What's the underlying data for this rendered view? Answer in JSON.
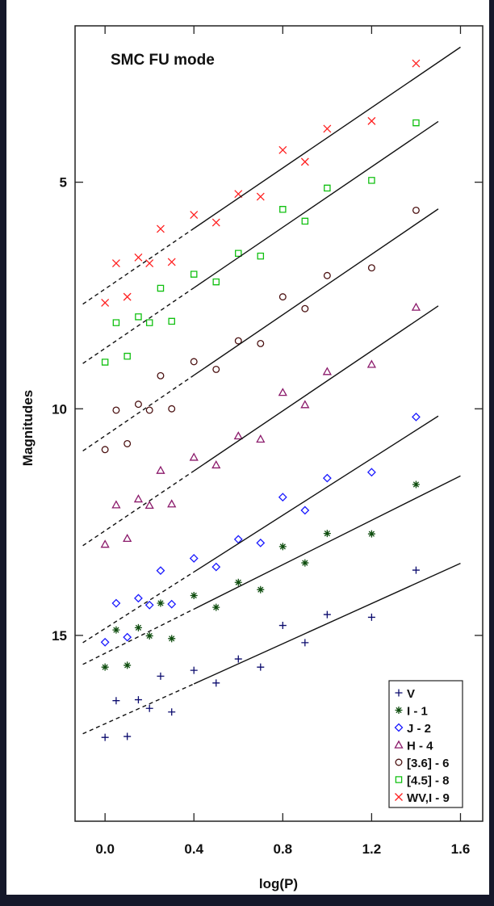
{
  "chart_data": {
    "type": "scatter",
    "title": "SMC FU mode",
    "xlabel": "log(P)",
    "ylabel": "Magnitudes",
    "xlim": [
      -0.135,
      1.7
    ],
    "ylim": [
      19.1,
      1.55
    ],
    "y_inverted": true,
    "xticks": [
      {
        "value": 0,
        "label": "0.0"
      },
      0.4,
      0.8,
      1.2,
      1.6
    ],
    "yticks": [
      5,
      10,
      15
    ],
    "legend": "lower right",
    "series": [
      {
        "name": "V",
        "color": "#0b0b6e",
        "marker": "plus",
        "x": [
          0.0,
          0.05,
          0.1,
          0.15,
          0.2,
          0.25,
          0.3,
          0.4,
          0.5,
          0.6,
          0.7,
          0.8,
          0.9,
          1.0,
          1.2,
          1.4
        ],
        "values": [
          17.25,
          16.44,
          17.23,
          16.42,
          16.61,
          15.9,
          16.69,
          15.77,
          16.05,
          15.52,
          15.7,
          14.78,
          15.16,
          14.54,
          14.6,
          13.56
        ],
        "fit": {
          "x": [
            -0.1,
            0.4,
            1.6
          ],
          "y": [
            17.17,
            16.07,
            13.41
          ]
        }
      },
      {
        "name": "I - 1",
        "color": "#0e4d0e",
        "marker": "asterisk",
        "x": [
          0.0,
          0.05,
          0.1,
          0.15,
          0.2,
          0.25,
          0.3,
          0.4,
          0.5,
          0.6,
          0.7,
          0.8,
          0.9,
          1.0,
          1.2,
          1.4
        ],
        "values": [
          15.7,
          14.88,
          15.66,
          14.83,
          15.01,
          14.29,
          15.07,
          14.12,
          14.38,
          13.83,
          13.99,
          13.04,
          13.4,
          12.75,
          12.76,
          11.67
        ],
        "fit": {
          "x": [
            -0.1,
            0.4,
            1.6
          ],
          "y": [
            15.64,
            14.42,
            11.48
          ]
        }
      },
      {
        "name": "J - 2",
        "color": "#1a1aff",
        "marker": "diamond",
        "x": [
          0.0,
          0.05,
          0.1,
          0.15,
          0.2,
          0.25,
          0.3,
          0.4,
          0.5,
          0.6,
          0.7,
          0.8,
          0.9,
          1.0,
          1.2,
          1.4
        ],
        "values": [
          15.15,
          14.29,
          15.04,
          14.18,
          14.33,
          13.57,
          14.31,
          13.3,
          13.49,
          12.88,
          12.96,
          11.95,
          12.24,
          11.53,
          11.4,
          10.18
        ],
        "fit": {
          "x": [
            -0.1,
            0.4,
            1.5
          ],
          "y": [
            15.16,
            13.6,
            10.16
          ]
        }
      },
      {
        "name": "H - 4",
        "color": "#8b1a6b",
        "marker": "triangle",
        "x": [
          0.0,
          0.05,
          0.1,
          0.15,
          0.2,
          0.25,
          0.3,
          0.4,
          0.5,
          0.6,
          0.7,
          0.8,
          0.9,
          1.0,
          1.2,
          1.4
        ],
        "values": [
          12.99,
          12.12,
          12.86,
          11.99,
          12.13,
          11.36,
          12.1,
          11.07,
          11.24,
          10.6,
          10.67,
          9.64,
          9.91,
          9.18,
          9.02,
          7.76
        ],
        "fit": {
          "x": [
            -0.1,
            0.4,
            1.5
          ],
          "y": [
            13.02,
            11.37,
            7.73
          ]
        }
      },
      {
        "name": "[3.6] - 6",
        "color": "#4a1010",
        "marker": "circle",
        "x": [
          0.0,
          0.05,
          0.1,
          0.15,
          0.2,
          0.25,
          0.3,
          0.4,
          0.5,
          0.6,
          0.7,
          0.8,
          0.9,
          1.0,
          1.2,
          1.4
        ],
        "values": [
          10.9,
          10.03,
          10.77,
          9.9,
          10.03,
          9.27,
          10.0,
          8.96,
          9.13,
          8.5,
          8.56,
          7.53,
          7.79,
          7.06,
          6.89,
          5.62
        ],
        "fit": {
          "x": [
            -0.1,
            0.4,
            1.5
          ],
          "y": [
            10.93,
            9.26,
            5.59
          ]
        }
      },
      {
        "name": "[4.5] - 8",
        "color": "#10c010",
        "marker": "square",
        "x": [
          0.0,
          0.05,
          0.1,
          0.15,
          0.2,
          0.25,
          0.3,
          0.4,
          0.5,
          0.6,
          0.7,
          0.8,
          0.9,
          1.0,
          1.2,
          1.4
        ],
        "values": [
          8.97,
          8.1,
          8.84,
          7.97,
          8.1,
          7.34,
          8.07,
          7.03,
          7.2,
          6.57,
          6.63,
          5.6,
          5.86,
          5.13,
          4.96,
          3.69
        ],
        "fit": {
          "x": [
            -0.1,
            0.4,
            1.5
          ],
          "y": [
            9.0,
            7.33,
            3.66
          ]
        }
      },
      {
        "name": "WV,I - 9",
        "color": "#ff2020",
        "marker": "cross",
        "x": [
          0.0,
          0.05,
          0.1,
          0.15,
          0.2,
          0.25,
          0.3,
          0.4,
          0.5,
          0.6,
          0.7,
          0.8,
          0.9,
          1.0,
          1.2,
          1.4
        ],
        "values": [
          7.66,
          6.79,
          7.53,
          6.66,
          6.79,
          6.03,
          6.76,
          5.72,
          5.89,
          5.26,
          5.32,
          4.29,
          4.55,
          3.82,
          3.65,
          2.38
        ],
        "fit": {
          "x": [
            -0.1,
            0.4,
            1.6
          ],
          "y": [
            7.69,
            6.02,
            2.02
          ]
        }
      }
    ]
  }
}
